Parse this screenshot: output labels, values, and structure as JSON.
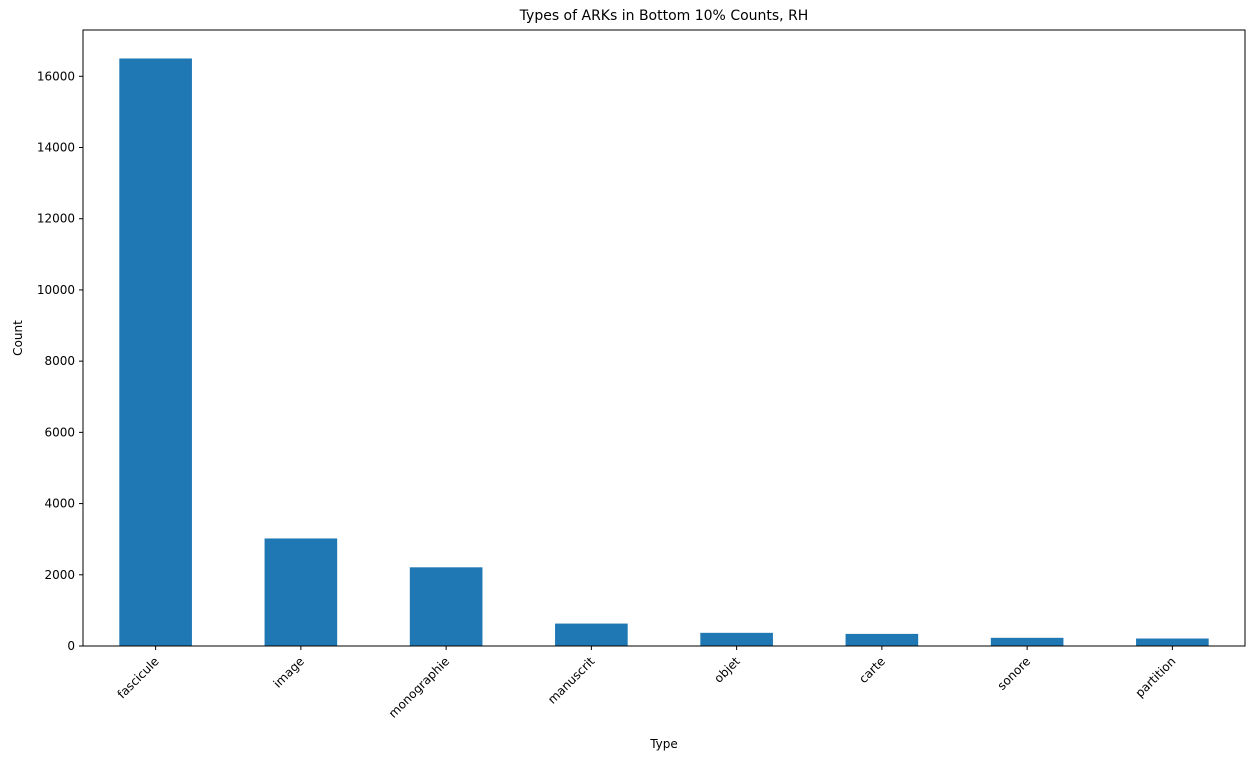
{
  "chart_data": {
    "type": "bar",
    "title": "Types of ARKs in Bottom 10% Counts, RH",
    "xlabel": "Type",
    "ylabel": "Count",
    "categories": [
      "fascicule",
      "image",
      "monographie",
      "manuscrit",
      "objet",
      "carte",
      "sonore",
      "partition"
    ],
    "values": [
      16500,
      3020,
      2210,
      630,
      370,
      340,
      230,
      210
    ],
    "ylim": [
      0,
      17300
    ],
    "yticks": [
      0,
      2000,
      4000,
      6000,
      8000,
      10000,
      12000,
      14000,
      16000
    ],
    "grid": false,
    "legend": "none",
    "bar_color": "#1f77b4",
    "x_tick_rotation_deg": 45
  }
}
